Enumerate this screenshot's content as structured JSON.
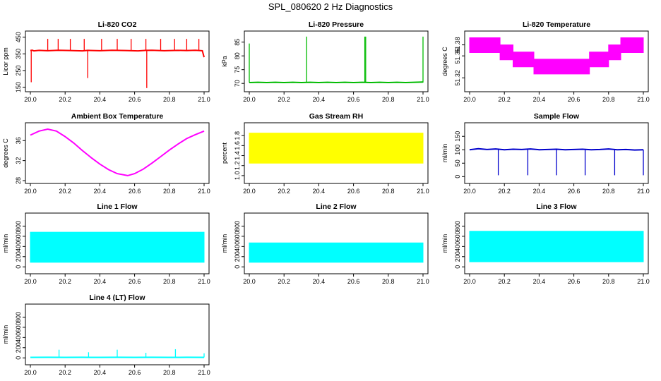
{
  "figure": {
    "title": "SPL_080620  2 Hz Diagnostics"
  },
  "chart_data": [
    {
      "type": "line",
      "title": "Li-820 CO2",
      "ylabel": "Licor ppm",
      "color": "#ff0000",
      "xlim": [
        20.0,
        21.0
      ],
      "ylim": [
        140,
        470
      ],
      "x_ticks": [
        "20.0",
        "20.2",
        "20.4",
        "20.6",
        "20.8",
        "21.0"
      ],
      "y_ticks": [
        "150",
        "250",
        "350",
        "450"
      ],
      "series": [
        {
          "x": [
            20.0,
            20.01,
            20.02,
            20.05,
            20.1,
            20.16,
            20.23,
            20.3,
            20.33,
            20.4,
            20.47,
            20.55,
            20.62,
            20.665,
            20.7,
            20.77,
            20.85,
            20.9,
            20.95,
            20.99,
            21.0
          ],
          "y": [
            370,
            372,
            368,
            371,
            369,
            372,
            370,
            368,
            371,
            369,
            372,
            370,
            368,
            371,
            372,
            369,
            371,
            370,
            372,
            369,
            330
          ]
        }
      ],
      "spikes": [
        {
          "x": 20.005,
          "y": 180
        },
        {
          "x": 20.1,
          "y": 440
        },
        {
          "x": 20.16,
          "y": 440
        },
        {
          "x": 20.23,
          "y": 440
        },
        {
          "x": 20.31,
          "y": 440
        },
        {
          "x": 20.33,
          "y": 205
        },
        {
          "x": 20.41,
          "y": 440
        },
        {
          "x": 20.5,
          "y": 440
        },
        {
          "x": 20.58,
          "y": 440
        },
        {
          "x": 20.665,
          "y": 440
        },
        {
          "x": 20.67,
          "y": 145
        },
        {
          "x": 20.75,
          "y": 440
        },
        {
          "x": 20.83,
          "y": 440
        },
        {
          "x": 20.9,
          "y": 440
        },
        {
          "x": 20.97,
          "y": 440
        }
      ]
    },
    {
      "type": "line",
      "title": "Li-820 Pressure",
      "ylabel": "kPa",
      "color": "#00bb00",
      "xlim": [
        20.0,
        21.0
      ],
      "ylim": [
        68,
        88
      ],
      "x_ticks": [
        "20.0",
        "20.2",
        "20.4",
        "20.6",
        "20.8",
        "21.0"
      ],
      "y_ticks": [
        "70",
        "75",
        "80",
        "85"
      ],
      "series": [
        {
          "x": [
            20.0,
            20.05,
            20.1,
            20.15,
            20.2,
            20.25,
            20.3,
            20.35,
            20.4,
            20.45,
            20.5,
            20.55,
            20.6,
            20.65,
            20.7,
            20.75,
            20.8,
            20.85,
            20.9,
            20.95,
            21.0
          ],
          "y": [
            70.3,
            70.4,
            70.3,
            70.4,
            70.3,
            70.4,
            70.3,
            70.4,
            70.3,
            70.4,
            70.3,
            70.4,
            70.3,
            70.4,
            70.3,
            70.4,
            70.3,
            70.4,
            70.3,
            70.4,
            70.5
          ]
        }
      ],
      "spikes": [
        {
          "x": 20.0,
          "y": 84.5
        },
        {
          "x": 20.33,
          "y": 87
        },
        {
          "x": 20.665,
          "y": 87
        },
        {
          "x": 20.67,
          "y": 87
        },
        {
          "x": 21.0,
          "y": 87
        }
      ]
    },
    {
      "type": "area",
      "title": "Li-820 Temperature",
      "ylabel": "degrees C",
      "color": "#ff00ff",
      "xlim": [
        20.0,
        21.0
      ],
      "ylim": [
        51.3,
        51.4
      ],
      "x_ticks": [
        "20.0",
        "20.2",
        "20.4",
        "20.6",
        "20.8",
        "21.0"
      ],
      "y_ticks": [
        "51.32",
        "51.36",
        "51.38"
      ],
      "series": [
        {
          "x": [
            20.0,
            20.175,
            20.175,
            20.25,
            20.25,
            20.37,
            20.37,
            20.69,
            20.69,
            20.8,
            20.8,
            20.87,
            20.87,
            21.0
          ],
          "low": [
            51.366,
            51.366,
            51.353,
            51.353,
            51.34,
            51.34,
            51.327,
            51.327,
            51.34,
            51.34,
            51.353,
            51.353,
            51.366,
            51.366
          ],
          "high": [
            51.393,
            51.393,
            51.38,
            51.38,
            51.367,
            51.367,
            51.354,
            51.354,
            51.367,
            51.367,
            51.38,
            51.38,
            51.393,
            51.393
          ]
        }
      ]
    },
    {
      "type": "line",
      "title": "Ambient Box Temperature",
      "ylabel": "degrees C",
      "color": "#ff00ff",
      "xlim": [
        20.0,
        21.0
      ],
      "ylim": [
        28,
        39
      ],
      "x_ticks": [
        "20.0",
        "20.2",
        "20.4",
        "20.6",
        "20.8",
        "21.0"
      ],
      "y_ticks": [
        "28",
        "32",
        "36"
      ],
      "series": [
        {
          "x": [
            20.0,
            20.05,
            20.1,
            20.15,
            20.2,
            20.25,
            20.3,
            20.35,
            20.4,
            20.45,
            20.5,
            20.56,
            20.6,
            20.65,
            20.7,
            20.75,
            20.8,
            20.85,
            20.9,
            20.95,
            21.0
          ],
          "y": [
            37.1,
            37.9,
            38.3,
            37.9,
            36.8,
            35.5,
            34.0,
            32.6,
            31.3,
            30.2,
            29.4,
            29.0,
            29.4,
            30.3,
            31.5,
            32.8,
            34.1,
            35.3,
            36.4,
            37.2,
            37.9
          ]
        }
      ]
    },
    {
      "type": "area",
      "title": "Gas Stream RH",
      "ylabel": "percent",
      "color": "#ffff00",
      "xlim": [
        20.0,
        21.0
      ],
      "ylim": [
        0.9,
        2.0
      ],
      "x_ticks": [
        "20.0",
        "20.2",
        "20.4",
        "20.6",
        "20.8",
        "21.0"
      ],
      "y_ticks": [
        "1.0",
        "1.2",
        "1.4",
        "1.6",
        "1.8"
      ],
      "series": [
        {
          "x": [
            20.0,
            21.0
          ],
          "low": [
            1.25,
            1.25
          ],
          "high": [
            1.85,
            1.85
          ]
        }
      ]
    },
    {
      "type": "line",
      "title": "Sample Flow",
      "ylabel": "ml/min",
      "color": "#0000cc",
      "xlim": [
        20.0,
        21.0
      ],
      "ylim": [
        -15,
        190
      ],
      "x_ticks": [
        "20.0",
        "20.2",
        "20.4",
        "20.6",
        "20.8",
        "21.0"
      ],
      "y_ticks": [
        "0",
        "50",
        "100",
        "150"
      ],
      "series": [
        {
          "x": [
            20.0,
            20.05,
            20.1,
            20.15,
            20.2,
            20.25,
            20.3,
            20.35,
            20.4,
            20.45,
            20.5,
            20.55,
            20.6,
            20.65,
            20.7,
            20.75,
            20.8,
            20.85,
            20.9,
            20.95,
            21.0
          ],
          "y": [
            100,
            104,
            101,
            103,
            100,
            102,
            101,
            103,
            100,
            101,
            102,
            100,
            101,
            102,
            100,
            101,
            103,
            100,
            101,
            99,
            100
          ]
        }
      ],
      "spikes": [
        {
          "x": 20.165,
          "y": 5
        },
        {
          "x": 20.335,
          "y": 5
        },
        {
          "x": 20.5,
          "y": 5
        },
        {
          "x": 20.665,
          "y": 5
        },
        {
          "x": 20.835,
          "y": 5
        },
        {
          "x": 21.0,
          "y": 5
        }
      ]
    },
    {
      "type": "area",
      "title": "Line 1 Flow",
      "ylabel": "ml/min",
      "color": "#00ffff",
      "xlim": [
        20.0,
        21.0
      ],
      "ylim": [
        -80,
        1000
      ],
      "x_ticks": [
        "20.0",
        "20.2",
        "20.4",
        "20.6",
        "20.8",
        "21.0"
      ],
      "y_ticks": [
        "0",
        "200",
        "400",
        "600",
        "800"
      ],
      "series": [
        {
          "x": [
            20.0,
            21.0
          ],
          "low": [
            90,
            90
          ],
          "high": [
            680,
            680
          ]
        }
      ]
    },
    {
      "type": "area",
      "title": "Line 2 Flow",
      "ylabel": "ml/min",
      "color": "#00ffff",
      "xlim": [
        20.0,
        21.0
      ],
      "ylim": [
        -80,
        1000
      ],
      "x_ticks": [
        "20.0",
        "20.2",
        "20.4",
        "20.6",
        "20.8",
        "21.0"
      ],
      "y_ticks": [
        "0",
        "200",
        "400",
        "600",
        "800"
      ],
      "series": [
        {
          "x": [
            20.0,
            21.0
          ],
          "low": [
            90,
            90
          ],
          "high": [
            470,
            470
          ]
        }
      ]
    },
    {
      "type": "area",
      "title": "Line 3 Flow",
      "ylabel": "ml/min",
      "color": "#00ffff",
      "xlim": [
        20.0,
        21.0
      ],
      "ylim": [
        -80,
        1000
      ],
      "x_ticks": [
        "20.0",
        "20.2",
        "20.4",
        "20.6",
        "20.8",
        "21.0"
      ],
      "y_ticks": [
        "0",
        "200",
        "400",
        "600",
        "800"
      ],
      "series": [
        {
          "x": [
            20.0,
            21.0
          ],
          "low": [
            100,
            100
          ],
          "high": [
            700,
            700
          ]
        }
      ]
    },
    {
      "type": "line",
      "title": "Line 4 (LT) Flow",
      "ylabel": "ml/min",
      "color": "#00ffff",
      "xlim": [
        20.0,
        21.0
      ],
      "ylim": [
        -80,
        1000
      ],
      "x_ticks": [
        "20.0",
        "20.2",
        "20.4",
        "20.6",
        "20.8",
        "21.0"
      ],
      "y_ticks": [
        "0",
        "200",
        "400",
        "600",
        "800"
      ],
      "series": [
        {
          "x": [
            20.0,
            20.1,
            20.2,
            20.3,
            20.4,
            20.5,
            20.6,
            20.7,
            20.8,
            20.9,
            21.0
          ],
          "y": [
            10,
            12,
            10,
            11,
            10,
            12,
            10,
            11,
            10,
            12,
            10
          ]
        }
      ],
      "spikes": [
        {
          "x": 20.165,
          "y": 160
        },
        {
          "x": 20.335,
          "y": 110
        },
        {
          "x": 20.5,
          "y": 160
        },
        {
          "x": 20.665,
          "y": 100
        },
        {
          "x": 20.835,
          "y": 170
        },
        {
          "x": 21.0,
          "y": 90
        }
      ]
    }
  ]
}
